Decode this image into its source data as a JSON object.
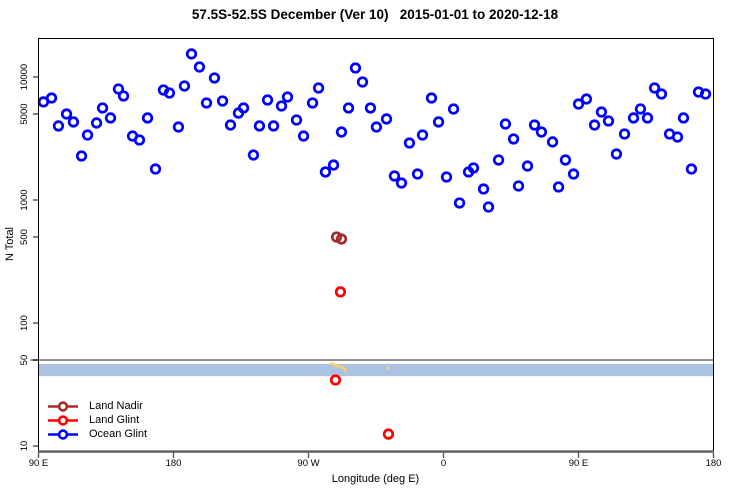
{
  "title": "57.5S-52.5S December (Ver 10)   2015-01-01 to 2020-12-18",
  "axes": {
    "x": {
      "title": "Longitude (deg E)",
      "ticks": [
        {
          "deg": 90,
          "label": "90 E"
        },
        {
          "deg": 180,
          "label": "180"
        },
        {
          "deg": 270,
          "label": "90 W"
        },
        {
          "deg": 360,
          "label": "0"
        },
        {
          "deg": 450,
          "label": "90 E"
        },
        {
          "deg": 540,
          "label": "180"
        }
      ]
    },
    "y": {
      "title": "N Total",
      "scale": "log10",
      "ticks": [
        {
          "v": 10000,
          "label": "10000"
        },
        {
          "v": 5000,
          "label": "5000"
        },
        {
          "v": 1000,
          "label": "1000"
        },
        {
          "v": 500,
          "label": "500"
        },
        {
          "v": 100,
          "label": "100"
        },
        {
          "v": 50,
          "label": "50"
        },
        {
          "v": 10,
          "label": "10"
        }
      ]
    }
  },
  "legend": {
    "items": [
      {
        "label": "Land Nadir",
        "color": "#A52A2A"
      },
      {
        "label": "Land Glint",
        "color": "#FF0000"
      },
      {
        "label": "Ocean Glint",
        "color": "#0000FF"
      }
    ]
  },
  "chart_data": {
    "type": "scatter",
    "title": "57.5S-52.5S December (Ver 10)   2015-01-01 to 2020-12-18",
    "xlabel": "Longitude (deg E)",
    "ylabel": "N Total",
    "x_axis_deg_east_range": [
      90,
      540
    ],
    "y_log_range": [
      9,
      20500
    ],
    "grid": false,
    "legend_position": "bottom-left-inside",
    "reference_line": {
      "n": 50,
      "color": "#8E8E8E",
      "width": 2
    },
    "reference_band": {
      "n_low": 37,
      "n_high": 46.5,
      "color": "#ABC2E2"
    },
    "axis_line_color": "#5A5A5A",
    "series": [
      {
        "name": "flagged-marks",
        "color": "#EDCE7E",
        "style": "dot",
        "points": [
          [
            285.3,
            46.4
          ],
          [
            287.3,
            45.6
          ],
          [
            289.3,
            44.7
          ],
          [
            291.3,
            43.9
          ],
          [
            293.3,
            43.1
          ],
          [
            294.7,
            41.5
          ],
          [
            323.3,
            43.1
          ]
        ]
      },
      {
        "name": "Land Nadir",
        "color": "#A52A2A",
        "style": "ring",
        "points": [
          [
            288.7,
            500
          ],
          [
            292,
            482
          ]
        ]
      },
      {
        "name": "Land Glint",
        "color": "#FF0000",
        "style": "ring",
        "points": [
          [
            291.3,
            179
          ],
          [
            288,
            34.4
          ],
          [
            323.3,
            12.5
          ]
        ]
      },
      {
        "name": "Ocean Glint",
        "color": "#0000FF",
        "style": "ring",
        "points": [
          [
            93.3,
            6270
          ],
          [
            98.7,
            6745
          ],
          [
            103.3,
            4000
          ],
          [
            108.7,
            5000
          ],
          [
            113.3,
            4310
          ],
          [
            118.7,
            2280
          ],
          [
            122.7,
            3375
          ],
          [
            128.7,
            4230
          ],
          [
            132.7,
            5600
          ],
          [
            138,
            4645
          ],
          [
            143.3,
            7990
          ],
          [
            146.7,
            7010
          ],
          [
            152.7,
            3310
          ],
          [
            157.3,
            3075
          ],
          [
            162.7,
            4645
          ],
          [
            168,
            1786
          ],
          [
            173.3,
            7840
          ],
          [
            177.3,
            7410
          ],
          [
            183.3,
            3920
          ],
          [
            187.3,
            8450
          ],
          [
            192,
            15400
          ],
          [
            197.3,
            12060
          ],
          [
            202,
            6150
          ],
          [
            207.3,
            9820
          ],
          [
            212.7,
            6380
          ],
          [
            218,
            4070
          ],
          [
            223.3,
            5090
          ],
          [
            226.7,
            5600
          ],
          [
            233.3,
            2320
          ],
          [
            237.3,
            4000
          ],
          [
            242.7,
            6500
          ],
          [
            246.7,
            4000
          ],
          [
            252,
            5810
          ],
          [
            256,
            6870
          ],
          [
            262,
            4470
          ],
          [
            266.7,
            3310
          ],
          [
            272.7,
            6150
          ],
          [
            276.7,
            8140
          ],
          [
            281.3,
            1690
          ],
          [
            286.7,
            1925
          ],
          [
            292,
            3570
          ],
          [
            296.7,
            5600
          ],
          [
            301.3,
            11830
          ],
          [
            306,
            9110
          ],
          [
            311.3,
            5600
          ],
          [
            315.3,
            3920
          ],
          [
            322,
            4560
          ],
          [
            327.3,
            1567
          ],
          [
            332,
            1374
          ],
          [
            337.3,
            2905
          ],
          [
            342.7,
            1626
          ],
          [
            346,
            3375
          ],
          [
            352,
            6745
          ],
          [
            356.7,
            4310
          ],
          [
            362,
            1538
          ],
          [
            366.7,
            5495
          ],
          [
            370.7,
            946
          ],
          [
            376.7,
            1690
          ],
          [
            380,
            1820
          ],
          [
            386.7,
            1228
          ],
          [
            390,
            877
          ],
          [
            396.7,
            2115
          ],
          [
            401.3,
            4150
          ],
          [
            406.7,
            3135
          ],
          [
            410,
            1300
          ],
          [
            416,
            1888
          ],
          [
            420.7,
            4070
          ],
          [
            425.3,
            3570
          ],
          [
            432.7,
            2965
          ],
          [
            436.7,
            1276
          ],
          [
            441.3,
            2115
          ],
          [
            446.7,
            1626
          ],
          [
            450,
            6026
          ],
          [
            455.3,
            6620
          ],
          [
            460.7,
            4070
          ],
          [
            465.3,
            5190
          ],
          [
            470,
            4390
          ],
          [
            475.3,
            2365
          ],
          [
            480.7,
            3440
          ],
          [
            486.7,
            4645
          ],
          [
            491.3,
            5495
          ],
          [
            496,
            4645
          ],
          [
            500.7,
            8140
          ],
          [
            505.3,
            7270
          ],
          [
            510.7,
            3440
          ],
          [
            516,
            3250
          ],
          [
            520,
            4645
          ],
          [
            525.3,
            1786
          ],
          [
            530,
            7550
          ],
          [
            534.7,
            7270
          ]
        ]
      }
    ]
  }
}
